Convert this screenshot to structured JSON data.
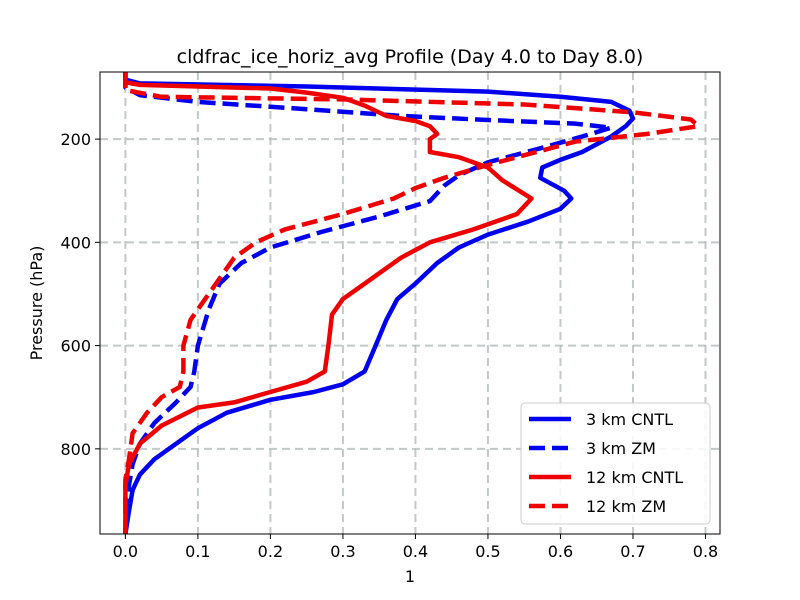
{
  "chart_data": {
    "type": "line",
    "title": "cldfrac_ice_horiz_avg Profile (Day 4.0 to Day 8.0)",
    "xlabel": "1",
    "ylabel": "Pressure (hPa)",
    "xlim": [
      -0.035,
      0.82
    ],
    "ylim": [
      965,
      70
    ],
    "y_inverted": true,
    "grid": true,
    "legend_position": "lower-right",
    "xticks": [
      0.0,
      0.1,
      0.2,
      0.3,
      0.4,
      0.5,
      0.6,
      0.7,
      0.8
    ],
    "xtick_labels": [
      "0.0",
      "0.1",
      "0.2",
      "0.3",
      "0.4",
      "0.5",
      "0.6",
      "0.7",
      "0.8"
    ],
    "yticks": [
      200,
      400,
      600,
      800
    ],
    "ytick_labels": [
      "200",
      "400",
      "600",
      "800"
    ],
    "series": [
      {
        "name": "3 km CNTL",
        "color": "#0000ee",
        "dash": "solid",
        "points": [
          [
            0,
            70
          ],
          [
            0,
            85
          ],
          [
            0.02,
            92
          ],
          [
            0.25,
            98
          ],
          [
            0.5,
            108
          ],
          [
            0.6,
            118
          ],
          [
            0.67,
            128
          ],
          [
            0.695,
            145
          ],
          [
            0.7,
            160
          ],
          [
            0.69,
            175
          ],
          [
            0.67,
            195
          ],
          [
            0.63,
            225
          ],
          [
            0.6,
            240
          ],
          [
            0.575,
            255
          ],
          [
            0.572,
            275
          ],
          [
            0.605,
            300
          ],
          [
            0.615,
            315
          ],
          [
            0.6,
            335
          ],
          [
            0.555,
            360
          ],
          [
            0.5,
            385
          ],
          [
            0.46,
            410
          ],
          [
            0.43,
            440
          ],
          [
            0.4,
            480
          ],
          [
            0.375,
            510
          ],
          [
            0.36,
            550
          ],
          [
            0.345,
            600
          ],
          [
            0.33,
            650
          ],
          [
            0.3,
            675
          ],
          [
            0.26,
            690
          ],
          [
            0.2,
            705
          ],
          [
            0.14,
            730
          ],
          [
            0.1,
            760
          ],
          [
            0.07,
            790
          ],
          [
            0.04,
            820
          ],
          [
            0.02,
            850
          ],
          [
            0.01,
            880
          ],
          [
            0.005,
            920
          ],
          [
            0,
            965
          ]
        ]
      },
      {
        "name": "3 km ZM",
        "color": "#0000ee",
        "dash": "dashed",
        "points": [
          [
            0,
            70
          ],
          [
            0,
            100
          ],
          [
            0.02,
            115
          ],
          [
            0.1,
            128
          ],
          [
            0.25,
            142
          ],
          [
            0.38,
            155
          ],
          [
            0.5,
            163
          ],
          [
            0.62,
            170
          ],
          [
            0.67,
            178
          ],
          [
            0.63,
            195
          ],
          [
            0.58,
            215
          ],
          [
            0.5,
            245
          ],
          [
            0.46,
            270
          ],
          [
            0.44,
            290
          ],
          [
            0.42,
            320
          ],
          [
            0.35,
            350
          ],
          [
            0.27,
            380
          ],
          [
            0.2,
            410
          ],
          [
            0.16,
            440
          ],
          [
            0.13,
            480
          ],
          [
            0.115,
            530
          ],
          [
            0.1,
            600
          ],
          [
            0.095,
            650
          ],
          [
            0.09,
            680
          ],
          [
            0.07,
            710
          ],
          [
            0.04,
            750
          ],
          [
            0.02,
            790
          ],
          [
            0.01,
            830
          ],
          [
            0.005,
            870
          ],
          [
            0,
            965
          ]
        ]
      },
      {
        "name": "12 km CNTL",
        "color": "#ee0000",
        "dash": "solid",
        "points": [
          [
            0,
            70
          ],
          [
            0,
            90
          ],
          [
            0.02,
            95
          ],
          [
            0.1,
            98
          ],
          [
            0.2,
            102
          ],
          [
            0.25,
            110
          ],
          [
            0.3,
            120
          ],
          [
            0.33,
            135
          ],
          [
            0.36,
            155
          ],
          [
            0.4,
            165
          ],
          [
            0.42,
            175
          ],
          [
            0.43,
            190
          ],
          [
            0.42,
            200
          ],
          [
            0.42,
            225
          ],
          [
            0.46,
            235
          ],
          [
            0.5,
            255
          ],
          [
            0.52,
            280
          ],
          [
            0.56,
            315
          ],
          [
            0.54,
            345
          ],
          [
            0.48,
            375
          ],
          [
            0.42,
            400
          ],
          [
            0.38,
            430
          ],
          [
            0.34,
            470
          ],
          [
            0.3,
            510
          ],
          [
            0.285,
            540
          ],
          [
            0.28,
            600
          ],
          [
            0.275,
            650
          ],
          [
            0.25,
            670
          ],
          [
            0.2,
            690
          ],
          [
            0.15,
            710
          ],
          [
            0.1,
            720
          ],
          [
            0.05,
            755
          ],
          [
            0.02,
            790
          ],
          [
            0.005,
            830
          ],
          [
            0,
            870
          ],
          [
            0,
            965
          ]
        ]
      },
      {
        "name": "12 km ZM",
        "color": "#ee0000",
        "dash": "dashed",
        "points": [
          [
            0,
            70
          ],
          [
            0,
            105
          ],
          [
            0.05,
            118
          ],
          [
            0.3,
            123
          ],
          [
            0.55,
            133
          ],
          [
            0.7,
            148
          ],
          [
            0.78,
            162
          ],
          [
            0.79,
            175
          ],
          [
            0.72,
            190
          ],
          [
            0.62,
            205
          ],
          [
            0.5,
            250
          ],
          [
            0.44,
            275
          ],
          [
            0.4,
            295
          ],
          [
            0.37,
            315
          ],
          [
            0.3,
            345
          ],
          [
            0.22,
            375
          ],
          [
            0.18,
            400
          ],
          [
            0.15,
            430
          ],
          [
            0.13,
            470
          ],
          [
            0.11,
            510
          ],
          [
            0.09,
            550
          ],
          [
            0.08,
            600
          ],
          [
            0.08,
            650
          ],
          [
            0.075,
            680
          ],
          [
            0.05,
            700
          ],
          [
            0.03,
            730
          ],
          [
            0.01,
            770
          ],
          [
            0.005,
            820
          ],
          [
            0,
            860
          ],
          [
            0,
            965
          ]
        ]
      }
    ]
  }
}
